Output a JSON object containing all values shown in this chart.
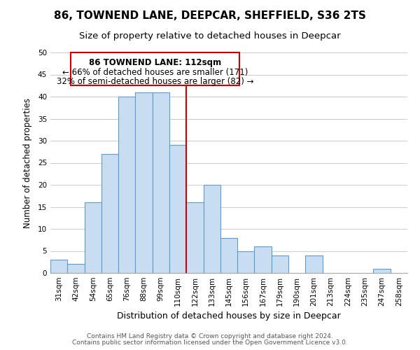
{
  "title": "86, TOWNEND LANE, DEEPCAR, SHEFFIELD, S36 2TS",
  "subtitle": "Size of property relative to detached houses in Deepcar",
  "xlabel": "Distribution of detached houses by size in Deepcar",
  "ylabel": "Number of detached properties",
  "bar_labels": [
    "31sqm",
    "42sqm",
    "54sqm",
    "65sqm",
    "76sqm",
    "88sqm",
    "99sqm",
    "110sqm",
    "122sqm",
    "133sqm",
    "145sqm",
    "156sqm",
    "167sqm",
    "179sqm",
    "190sqm",
    "201sqm",
    "213sqm",
    "224sqm",
    "235sqm",
    "247sqm",
    "258sqm"
  ],
  "bar_values": [
    3,
    2,
    16,
    27,
    40,
    41,
    41,
    29,
    16,
    20,
    8,
    5,
    6,
    4,
    0,
    4,
    0,
    0,
    0,
    1,
    0
  ],
  "bar_color": "#c9ddf0",
  "bar_edge_color": "#5b9bd5",
  "highlight_index": 7,
  "highlight_line_color": "#cc0000",
  "ylim": [
    0,
    50
  ],
  "yticks": [
    0,
    5,
    10,
    15,
    20,
    25,
    30,
    35,
    40,
    45,
    50
  ],
  "annotation_title": "86 TOWNEND LANE: 112sqm",
  "annotation_line1": "← 66% of detached houses are smaller (171)",
  "annotation_line2": "32% of semi-detached houses are larger (82) →",
  "annotation_box_edge": "#cc0000",
  "footer_line1": "Contains HM Land Registry data © Crown copyright and database right 2024.",
  "footer_line2": "Contains public sector information licensed under the Open Government Licence v3.0.",
  "title_fontsize": 11,
  "subtitle_fontsize": 9.5,
  "xlabel_fontsize": 9,
  "ylabel_fontsize": 8.5,
  "tick_fontsize": 7.5,
  "annotation_fontsize": 8.5,
  "footer_fontsize": 6.5
}
